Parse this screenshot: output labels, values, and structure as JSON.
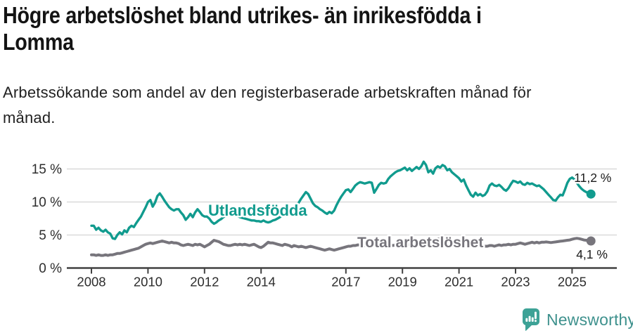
{
  "header": {
    "title_lines": [
      "Högre arbetslöshet bland utrikes- än inrikesfödda i",
      "Lomma"
    ],
    "subtitle_lines": [
      "Arbetssökande som andel av den registerbaserade arbetskraften månad för",
      "månad."
    ]
  },
  "footer": {
    "brand": "Newsworthy",
    "brand_color": "#3e918d"
  },
  "chart_data": {
    "type": "line",
    "x_unit": "month",
    "x_start": "2008-01",
    "x_end": "2025-09",
    "grid": "horizontal",
    "ylim": [
      0,
      16.5
    ],
    "y_ticks": [
      {
        "value": 0,
        "label": "0 %"
      },
      {
        "value": 5,
        "label": "5 %"
      },
      {
        "value": 10,
        "label": "10 %"
      },
      {
        "value": 15,
        "label": "15 %"
      }
    ],
    "x_ticks": [
      {
        "year": 2008,
        "label": "2008"
      },
      {
        "year": 2010,
        "label": "2010"
      },
      {
        "year": 2012,
        "label": "2012"
      },
      {
        "year": 2014,
        "label": "2014"
      },
      {
        "year": 2017,
        "label": "2017"
      },
      {
        "year": 2019,
        "label": "2019"
      },
      {
        "year": 2021,
        "label": "2021"
      },
      {
        "year": 2023,
        "label": "2023"
      },
      {
        "year": 2025,
        "label": "2025"
      }
    ],
    "series": [
      {
        "name": "Utlandsfödda",
        "color": "#119b8e",
        "end_label": "11,2 %",
        "values": [
          6.4,
          6.4,
          5.8,
          6.1,
          5.7,
          5.5,
          5.8,
          5.4,
          5.2,
          4.5,
          4.4,
          5.0,
          5.4,
          5.1,
          5.7,
          5.4,
          6.1,
          6.4,
          6.2,
          6.8,
          7.3,
          7.8,
          8.5,
          9.2,
          10.0,
          10.3,
          9.3,
          9.9,
          10.9,
          11.3,
          10.8,
          10.2,
          9.7,
          9.2,
          8.9,
          8.7,
          8.9,
          8.9,
          8.4,
          8.0,
          7.3,
          7.7,
          8.2,
          7.7,
          8.4,
          8.9,
          8.5,
          8.0,
          7.8,
          7.8,
          7.5,
          7.0,
          6.7,
          6.9,
          7.2,
          7.4,
          7.7,
          7.9,
          8.1,
          8.2,
          8.2,
          8.1,
          7.9,
          7.7,
          7.6,
          7.5,
          7.4,
          7.3,
          7.2,
          7.2,
          7.1,
          7.1,
          7.0,
          7.2,
          7.0,
          6.9,
          7.0,
          7.2,
          7.3,
          7.5,
          7.7,
          8.0,
          8.3,
          8.6,
          8.9,
          9.1,
          9.3,
          9.5,
          9.9,
          10.5,
          11.0,
          11.5,
          11.2,
          10.5,
          9.8,
          9.4,
          9.2,
          8.9,
          8.7,
          8.4,
          8.2,
          8.5,
          8.3,
          8.7,
          9.5,
          10.2,
          10.8,
          11.3,
          11.8,
          11.9,
          11.5,
          12.0,
          12.5,
          12.8,
          13.0,
          12.9,
          12.8,
          12.9,
          13.0,
          12.9,
          11.4,
          12.0,
          12.6,
          12.9,
          12.8,
          12.9,
          13.5,
          13.9,
          14.2,
          14.5,
          14.7,
          14.8,
          15.0,
          15.2,
          14.8,
          15.1,
          14.7,
          15.0,
          15.3,
          15.0,
          15.4,
          16.1,
          15.6,
          14.5,
          14.8,
          14.3,
          15.1,
          15.4,
          15.2,
          15.6,
          15.4,
          14.8,
          15.0,
          14.5,
          14.2,
          13.9,
          13.6,
          13.1,
          13.4,
          12.5,
          11.8,
          11.1,
          10.8,
          11.4,
          11.0,
          11.2,
          10.9,
          11.1,
          11.6,
          12.5,
          12.8,
          12.5,
          12.4,
          12.6,
          12.3,
          11.9,
          11.7,
          12.1,
          12.7,
          13.2,
          13.1,
          12.9,
          13.1,
          12.7,
          12.6,
          12.9,
          12.7,
          12.8,
          12.6,
          12.4,
          12.5,
          12.2,
          11.9,
          11.5,
          11.1,
          10.7,
          10.3,
          10.2,
          10.7,
          11.1,
          11.0,
          11.9,
          12.9,
          13.5,
          13.7,
          13.4,
          12.9,
          12.4,
          12.0,
          11.7,
          11.5,
          11.3,
          11.2
        ]
      },
      {
        "name": "Total arbetslöshet",
        "color": "#77757c",
        "end_label": "4,1 %",
        "values": [
          2.0,
          2.0,
          1.9,
          2.0,
          1.9,
          1.9,
          2.0,
          1.9,
          2.0,
          2.0,
          2.1,
          2.2,
          2.2,
          2.3,
          2.4,
          2.5,
          2.6,
          2.7,
          2.8,
          2.9,
          3.0,
          3.2,
          3.4,
          3.6,
          3.7,
          3.8,
          3.7,
          3.8,
          3.9,
          4.0,
          4.1,
          4.0,
          3.9,
          3.8,
          3.9,
          3.8,
          3.8,
          3.7,
          3.5,
          3.4,
          3.5,
          3.6,
          3.5,
          3.4,
          3.6,
          3.5,
          3.6,
          3.4,
          3.2,
          3.4,
          3.6,
          3.9,
          4.2,
          4.1,
          4.0,
          3.8,
          3.6,
          3.5,
          3.4,
          3.4,
          3.5,
          3.6,
          3.5,
          3.6,
          3.5,
          3.6,
          3.5,
          3.4,
          3.5,
          3.6,
          3.4,
          3.2,
          3.1,
          3.3,
          3.6,
          3.9,
          3.8,
          3.8,
          3.7,
          3.6,
          3.5,
          3.4,
          3.6,
          3.5,
          3.4,
          3.2,
          3.4,
          3.3,
          3.2,
          3.3,
          3.2,
          3.1,
          3.2,
          3.3,
          3.2,
          3.1,
          3.0,
          2.9,
          2.8,
          2.7,
          2.8,
          2.9,
          2.8,
          2.7,
          2.8,
          2.9,
          3.0,
          3.1,
          3.2,
          3.3,
          3.3,
          3.4,
          3.4,
          3.5,
          3.5,
          3.4,
          3.4,
          3.5,
          3.5,
          3.4,
          3.4,
          3.5,
          3.5,
          3.6,
          3.5,
          3.5,
          3.6,
          3.5,
          3.4,
          3.5,
          3.5,
          3.6,
          3.5,
          3.6,
          3.6,
          3.5,
          3.6,
          3.7,
          3.7,
          3.6,
          3.7,
          3.8,
          3.8,
          3.9,
          4.0,
          4.1,
          4.3,
          4.4,
          4.4,
          4.3,
          4.2,
          4.1,
          4.0,
          3.9,
          3.8,
          3.7,
          3.7,
          3.6,
          3.6,
          3.5,
          3.5,
          3.4,
          3.4,
          3.3,
          3.3,
          3.4,
          3.4,
          3.3,
          3.3,
          3.4,
          3.4,
          3.3,
          3.4,
          3.5,
          3.4,
          3.5,
          3.5,
          3.6,
          3.5,
          3.6,
          3.6,
          3.7,
          3.8,
          3.7,
          3.6,
          3.7,
          3.8,
          3.9,
          3.8,
          3.9,
          3.8,
          3.9,
          3.9,
          3.95,
          3.9,
          3.85,
          3.9,
          3.95,
          4.0,
          4.05,
          4.1,
          4.15,
          4.2,
          4.25,
          4.35,
          4.45,
          4.5,
          4.45,
          4.35,
          4.25,
          4.2,
          4.15,
          4.1
        ]
      }
    ]
  }
}
